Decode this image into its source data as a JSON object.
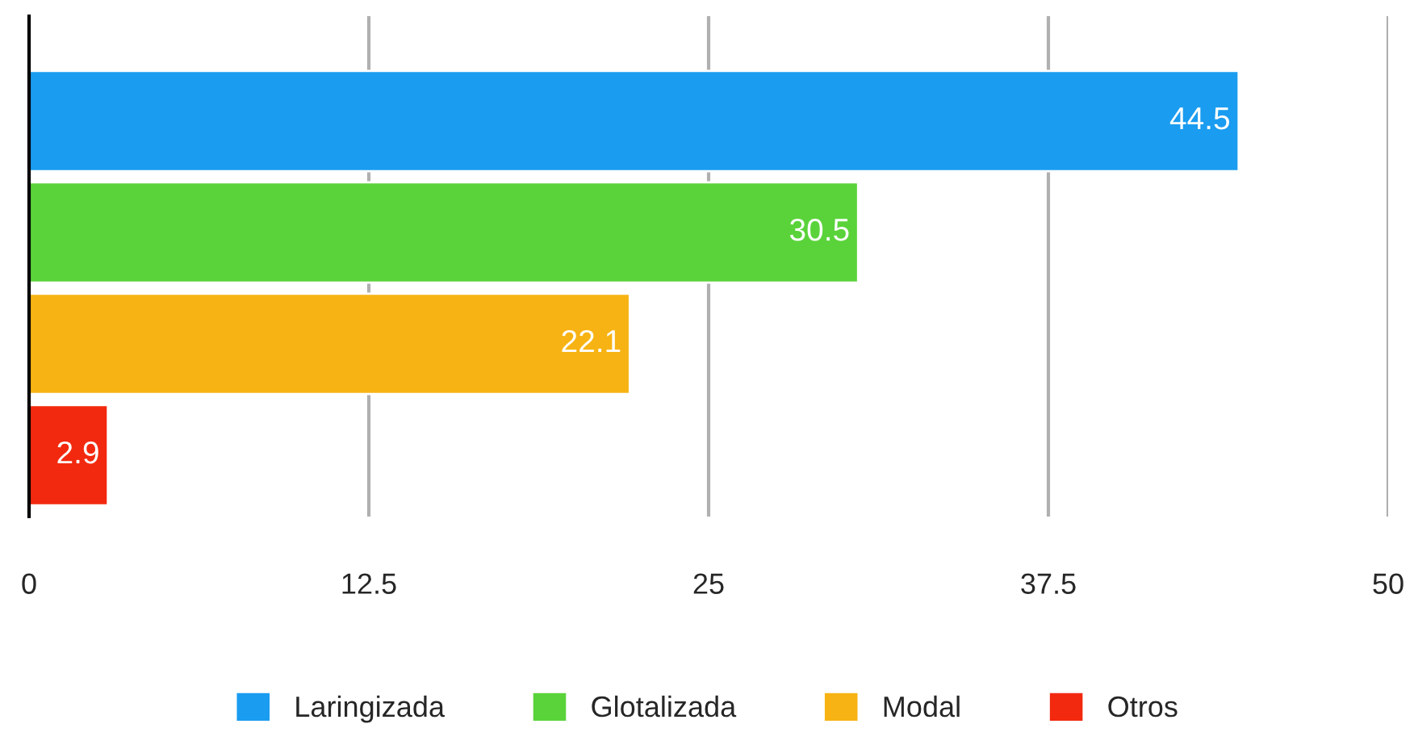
{
  "chart_data": {
    "type": "bar",
    "orientation": "horizontal",
    "categories": [
      null,
      null,
      null,
      null
    ],
    "series": [
      {
        "name": "Laringizada",
        "color": "#1a9cf0",
        "values": [
          44.5,
          null,
          null,
          null
        ]
      },
      {
        "name": "Glotalizada",
        "color": "#5ad33a",
        "values": [
          null,
          30.5,
          null,
          null
        ]
      },
      {
        "name": "Modal",
        "color": "#f7b313",
        "values": [
          null,
          null,
          22.1,
          null
        ]
      },
      {
        "name": "Otros",
        "color": "#f2290f",
        "values": [
          null,
          null,
          null,
          2.9
        ]
      }
    ],
    "xlim": [
      0,
      50
    ],
    "xticks": [
      0,
      12.5,
      25,
      37.5,
      50
    ],
    "grid": "x",
    "legend": "bottom",
    "data_labels": true
  }
}
